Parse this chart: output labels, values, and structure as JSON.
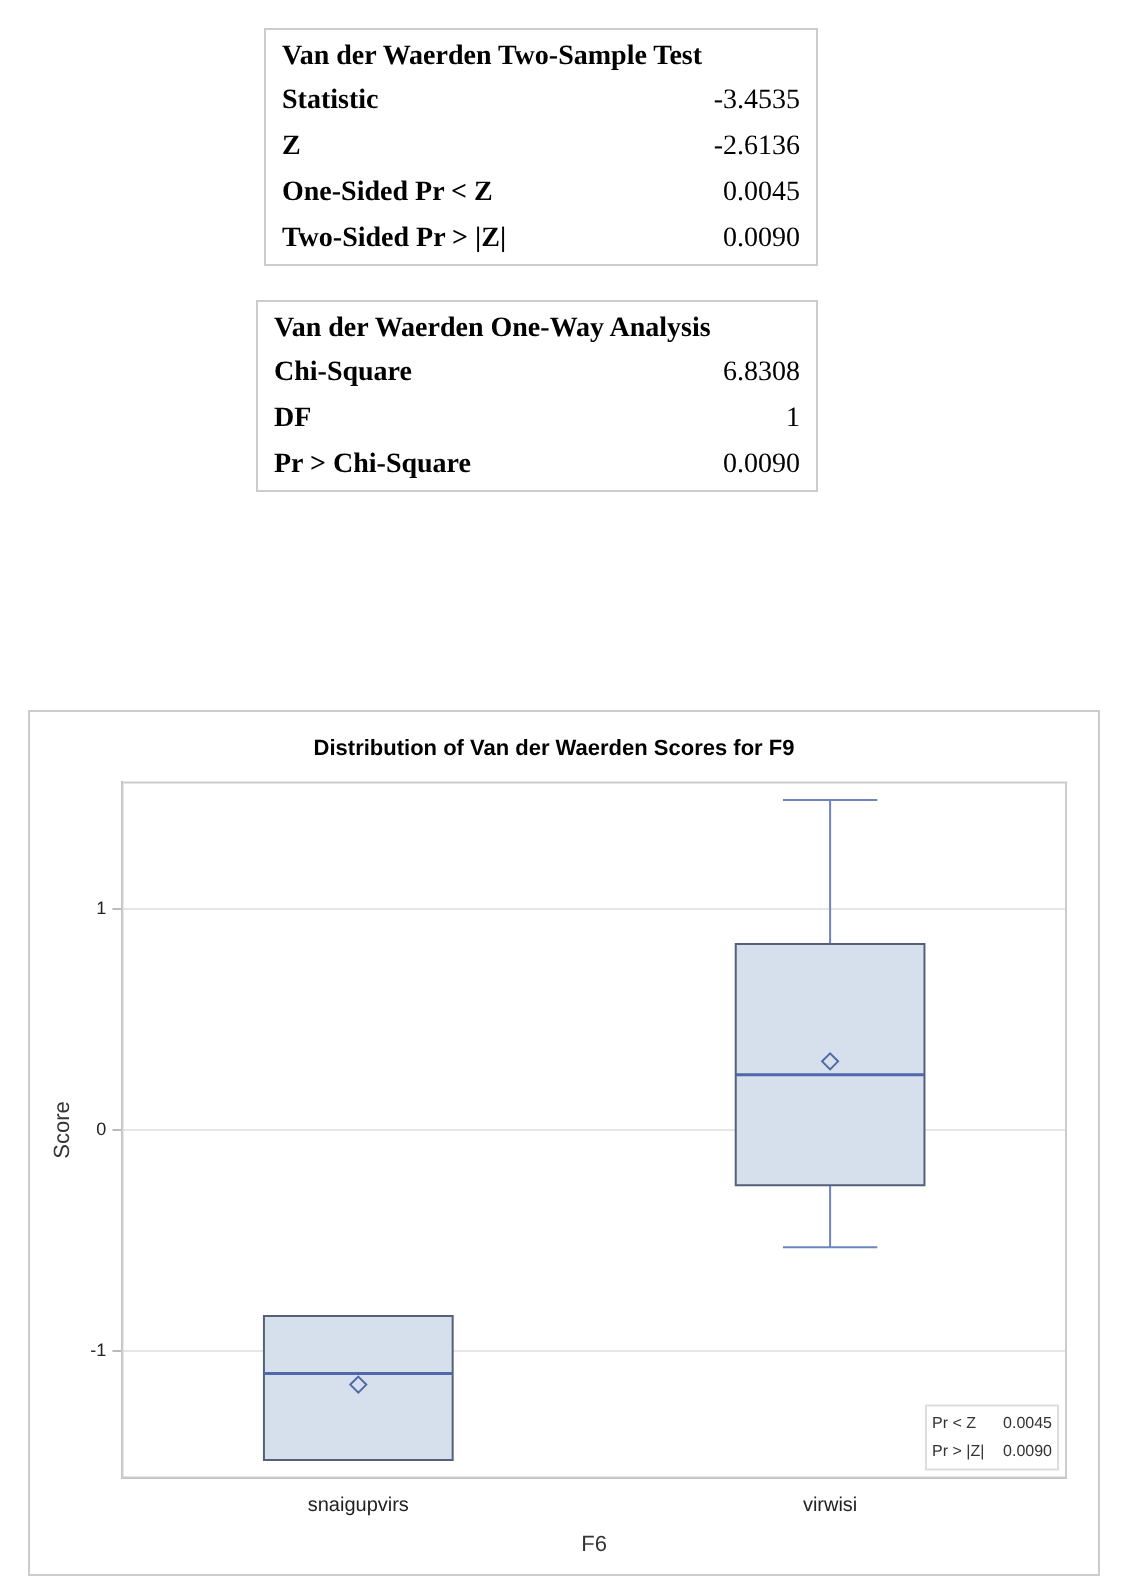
{
  "chart_data": [
    {
      "type": "other",
      "title": "Van der Waerden Two-Sample Test",
      "annotations": [
        "Statistic",
        "-3.4535",
        "Z",
        "-2.6136",
        "One-Sided Pr < Z",
        "0.0045",
        "Two-Sided Pr > |Z|",
        "0.0090"
      ]
    },
    {
      "type": "other",
      "title": "Van der Waerden One-Way Analysis",
      "annotations": [
        "Chi-Square",
        "6.8308",
        "DF",
        "1",
        "Pr > Chi-Square",
        "0.0090"
      ]
    },
    {
      "type": "box",
      "title": "Distribution of Van der Waerden Scores for F9",
      "xlabel": "F6",
      "ylabel": "Score",
      "categories": [
        "snaigupvirs",
        "virwisi"
      ],
      "series": [
        {
          "color": "#d6dfec",
          "boxes": [
            {
              "low": -1.49,
              "q1": -1.49,
              "median": -1.1,
              "q3": -0.84,
              "high": -0.84,
              "mean": -1.15
            },
            {
              "low": -0.53,
              "q1": -0.25,
              "median": 0.25,
              "q3": 0.84,
              "high": 1.49,
              "mean": 0.31
            }
          ]
        }
      ],
      "marker": "diamond",
      "ylim": [
        -1.57,
        1.57
      ],
      "yticks": [
        -1,
        0,
        1
      ],
      "grid": "y",
      "annotations": [
        "Pr < Z",
        "0.0045",
        "Pr > |Z|",
        "0.0090"
      ]
    }
  ]
}
